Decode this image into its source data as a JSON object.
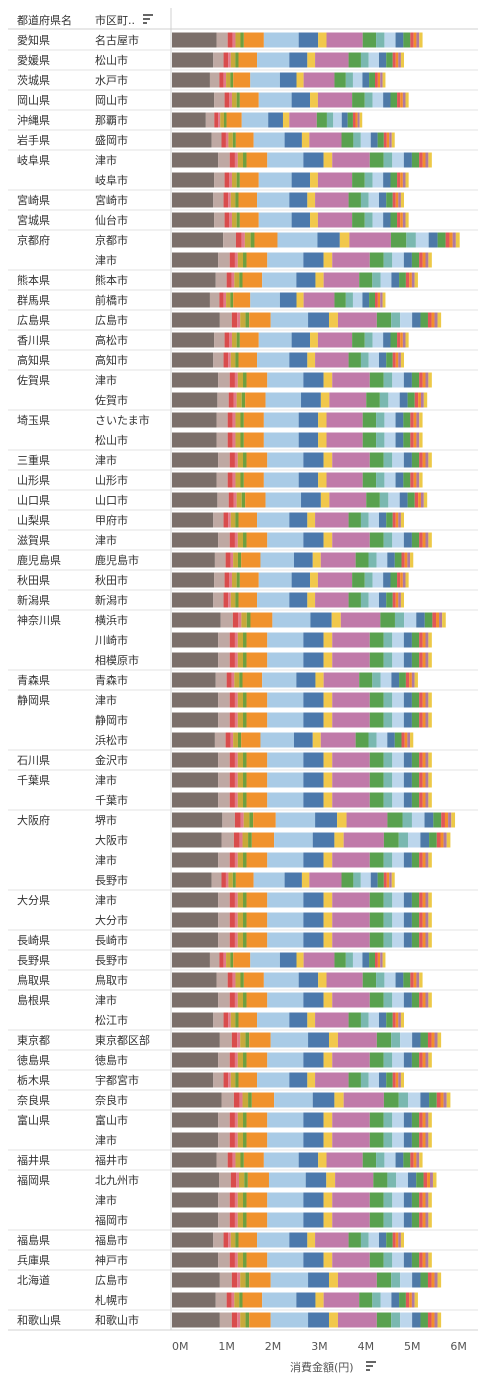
{
  "header": {
    "col1": "都道府県名",
    "col2": "市区町..",
    "sort_icon": "sort-descending-icon"
  },
  "axis": {
    "title": "消費金額(円)",
    "sort_icon": "sort-descending-icon",
    "ticks": [
      "0M",
      "1M",
      "2M",
      "3M",
      "4M",
      "5M",
      "6M"
    ]
  },
  "colors": [
    "#7b6f6a",
    "#bfa9a3",
    "#d94c4c",
    "#e07b8c",
    "#c8a93a",
    "#6e9f3f",
    "#f0922d",
    "#a9cbe6",
    "#4c79ac",
    "#f1c84c",
    "#c07aa9",
    "#59a14f",
    "#7ab8b0",
    "#bcd6ec",
    "#4e79a7",
    "#59a14f",
    "#e15759",
    "#f28e2b",
    "#b07aa1",
    "#edc948"
  ],
  "chart_data": {
    "type": "bar",
    "stacked": true,
    "orientation": "horizontal",
    "xlabel": "消費金額(円)",
    "xlim": [
      0,
      6.5
    ],
    "unit": "M",
    "tick_labels": [
      "0M",
      "1M",
      "2M",
      "3M",
      "4M",
      "5M",
      "6M"
    ],
    "rows": [
      {
        "pref": "愛知県",
        "city": "名古屋市",
        "total": 5.4
      },
      {
        "pref": "愛媛県",
        "city": "松山市",
        "total": 5.0
      },
      {
        "pref": "茨城県",
        "city": "水戸市",
        "total": 4.6
      },
      {
        "pref": "岡山県",
        "city": "岡山市",
        "total": 5.1
      },
      {
        "pref": "沖縄県",
        "city": "那覇市",
        "total": 4.1
      },
      {
        "pref": "岩手県",
        "city": "盛岡市",
        "total": 4.8
      },
      {
        "pref": "岐阜県",
        "city": "津市",
        "total": 5.6
      },
      {
        "pref": "",
        "city": "岐阜市",
        "total": 5.1
      },
      {
        "pref": "宮崎県",
        "city": "宮崎市",
        "total": 5.0
      },
      {
        "pref": "宮城県",
        "city": "仙台市",
        "total": 5.1
      },
      {
        "pref": "京都府",
        "city": "京都市",
        "total": 6.2
      },
      {
        "pref": "",
        "city": "津市",
        "total": 5.6
      },
      {
        "pref": "熊本県",
        "city": "熊本市",
        "total": 5.3
      },
      {
        "pref": "群馬県",
        "city": "前橋市",
        "total": 4.6
      },
      {
        "pref": "広島県",
        "city": "広島市",
        "total": 5.8
      },
      {
        "pref": "香川県",
        "city": "高松市",
        "total": 5.1
      },
      {
        "pref": "高知県",
        "city": "高知市",
        "total": 5.0
      },
      {
        "pref": "佐賀県",
        "city": "津市",
        "total": 5.6
      },
      {
        "pref": "",
        "city": "佐賀市",
        "total": 5.5
      },
      {
        "pref": "埼玉県",
        "city": "さいたま市",
        "total": 5.4
      },
      {
        "pref": "",
        "city": "松山市",
        "total": 5.4
      },
      {
        "pref": "三重県",
        "city": "津市",
        "total": 5.6
      },
      {
        "pref": "山形県",
        "city": "山形市",
        "total": 5.4
      },
      {
        "pref": "山口県",
        "city": "山口市",
        "total": 5.5
      },
      {
        "pref": "山梨県",
        "city": "甲府市",
        "total": 5.0
      },
      {
        "pref": "滋賀県",
        "city": "津市",
        "total": 5.6
      },
      {
        "pref": "鹿児島県",
        "city": "鹿児島市",
        "total": 5.2
      },
      {
        "pref": "秋田県",
        "city": "秋田市",
        "total": 5.1
      },
      {
        "pref": "新潟県",
        "city": "新潟市",
        "total": 5.0
      },
      {
        "pref": "神奈川県",
        "city": "横浜市",
        "total": 5.9
      },
      {
        "pref": "",
        "city": "川崎市",
        "total": 5.6
      },
      {
        "pref": "",
        "city": "相模原市",
        "total": 5.6
      },
      {
        "pref": "青森県",
        "city": "青森市",
        "total": 5.3
      },
      {
        "pref": "静岡県",
        "city": "津市",
        "total": 5.6
      },
      {
        "pref": "",
        "city": "静岡市",
        "total": 5.6
      },
      {
        "pref": "",
        "city": "浜松市",
        "total": 5.2
      },
      {
        "pref": "石川県",
        "city": "金沢市",
        "total": 5.6
      },
      {
        "pref": "千葉県",
        "city": "津市",
        "total": 5.6
      },
      {
        "pref": "",
        "city": "千葉市",
        "total": 5.6
      },
      {
        "pref": "大阪府",
        "city": "堺市",
        "total": 6.1
      },
      {
        "pref": "",
        "city": "大阪市",
        "total": 6.0
      },
      {
        "pref": "",
        "city": "津市",
        "total": 5.6
      },
      {
        "pref": "",
        "city": "長野市",
        "total": 4.8
      },
      {
        "pref": "大分県",
        "city": "津市",
        "total": 5.6
      },
      {
        "pref": "",
        "city": "大分市",
        "total": 5.6
      },
      {
        "pref": "長崎県",
        "city": "長崎市",
        "total": 5.6
      },
      {
        "pref": "長野県",
        "city": "長野市",
        "total": 4.6
      },
      {
        "pref": "鳥取県",
        "city": "鳥取市",
        "total": 5.4
      },
      {
        "pref": "島根県",
        "city": "津市",
        "total": 5.6
      },
      {
        "pref": "",
        "city": "松江市",
        "total": 5.0
      },
      {
        "pref": "東京都",
        "city": "東京都区部",
        "total": 5.8
      },
      {
        "pref": "徳島県",
        "city": "徳島市",
        "total": 5.6
      },
      {
        "pref": "栃木県",
        "city": "宇都宮市",
        "total": 5.0
      },
      {
        "pref": "奈良県",
        "city": "奈良市",
        "total": 6.0
      },
      {
        "pref": "富山県",
        "city": "富山市",
        "total": 5.6
      },
      {
        "pref": "",
        "city": "津市",
        "total": 5.6
      },
      {
        "pref": "福井県",
        "city": "福井市",
        "total": 5.4
      },
      {
        "pref": "福岡県",
        "city": "北九州市",
        "total": 5.7
      },
      {
        "pref": "",
        "city": "津市",
        "total": 5.6
      },
      {
        "pref": "",
        "city": "福岡市",
        "total": 5.6
      },
      {
        "pref": "福島県",
        "city": "福島市",
        "total": 5.0
      },
      {
        "pref": "兵庫県",
        "city": "神戸市",
        "total": 5.6
      },
      {
        "pref": "北海道",
        "city": "広島市",
        "total": 5.8
      },
      {
        "pref": "",
        "city": "札幌市",
        "total": 5.3
      },
      {
        "pref": "和歌山県",
        "city": "和歌山市",
        "total": 5.8
      }
    ],
    "segment_shares": [
      0.16,
      0.04,
      0.018,
      0.01,
      0.018,
      0.012,
      0.072,
      0.125,
      0.07,
      0.03,
      0.13,
      0.048,
      0.03,
      0.04,
      0.028,
      0.025,
      0.012,
      0.01,
      0.01,
      0.012
    ]
  }
}
